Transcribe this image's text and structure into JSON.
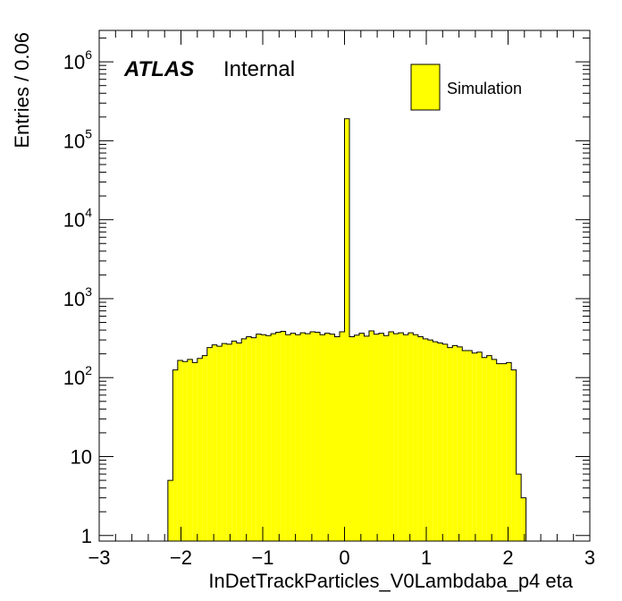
{
  "chart_data": {
    "type": "bar",
    "title": "",
    "xlabel": "InDetTrackParticles_V0Lambdaba_p4 eta",
    "ylabel": "Entries / 0.06",
    "xlim": [
      -3,
      3
    ],
    "ylim": [
      0.85,
      2500000
    ],
    "yscale": "log",
    "grid": false,
    "legend_position": "top-right",
    "bin_width": 0.06,
    "atlas_label": "ATLAS",
    "atlas_status": "Internal",
    "x_tick_labels": [
      "−3",
      "−2",
      "−1",
      "0",
      "1",
      "2",
      "3"
    ],
    "y_tick_labels": [
      {
        "value": 1,
        "base": "1",
        "exp": ""
      },
      {
        "value": 10,
        "base": "10",
        "exp": ""
      },
      {
        "value": 100,
        "base": "10",
        "exp": "2"
      },
      {
        "value": 1000,
        "base": "10",
        "exp": "3"
      },
      {
        "value": 10000,
        "base": "10",
        "exp": "4"
      },
      {
        "value": 100000,
        "base": "10",
        "exp": "5"
      },
      {
        "value": 1000000,
        "base": "10",
        "exp": "6"
      }
    ],
    "series": [
      {
        "name": "Simulation",
        "color": "#ffff00",
        "edge_color": "#000000",
        "bin_low_edges": [
          -2.16,
          -2.1,
          -2.04,
          -1.98,
          -1.92,
          -1.86,
          -1.8,
          -1.74,
          -1.68,
          -1.62,
          -1.56,
          -1.5,
          -1.44,
          -1.38,
          -1.32,
          -1.26,
          -1.2,
          -1.14,
          -1.08,
          -1.02,
          -0.96,
          -0.9,
          -0.84,
          -0.78,
          -0.72,
          -0.66,
          -0.6,
          -0.54,
          -0.48,
          -0.42,
          -0.36,
          -0.3,
          -0.24,
          -0.18,
          -0.12,
          -0.06,
          0.0,
          0.06,
          0.12,
          0.18,
          0.24,
          0.3,
          0.36,
          0.42,
          0.48,
          0.54,
          0.6,
          0.66,
          0.72,
          0.78,
          0.84,
          0.9,
          0.96,
          1.02,
          1.08,
          1.14,
          1.2,
          1.26,
          1.32,
          1.38,
          1.44,
          1.5,
          1.56,
          1.62,
          1.68,
          1.74,
          1.8,
          1.86,
          1.92,
          1.98,
          2.04,
          2.1,
          2.16
        ],
        "values": [
          5,
          125,
          165,
          160,
          170,
          155,
          175,
          190,
          240,
          260,
          250,
          270,
          265,
          290,
          275,
          310,
          330,
          320,
          355,
          350,
          340,
          360,
          375,
          385,
          350,
          365,
          350,
          370,
          360,
          380,
          375,
          350,
          365,
          355,
          330,
          380,
          190000,
          330,
          345,
          365,
          335,
          390,
          355,
          365,
          340,
          380,
          360,
          370,
          350,
          370,
          350,
          330,
          310,
          300,
          285,
          275,
          265,
          240,
          255,
          245,
          220,
          220,
          205,
          210,
          180,
          190,
          170,
          150,
          150,
          155,
          125,
          6,
          3
        ]
      }
    ]
  }
}
